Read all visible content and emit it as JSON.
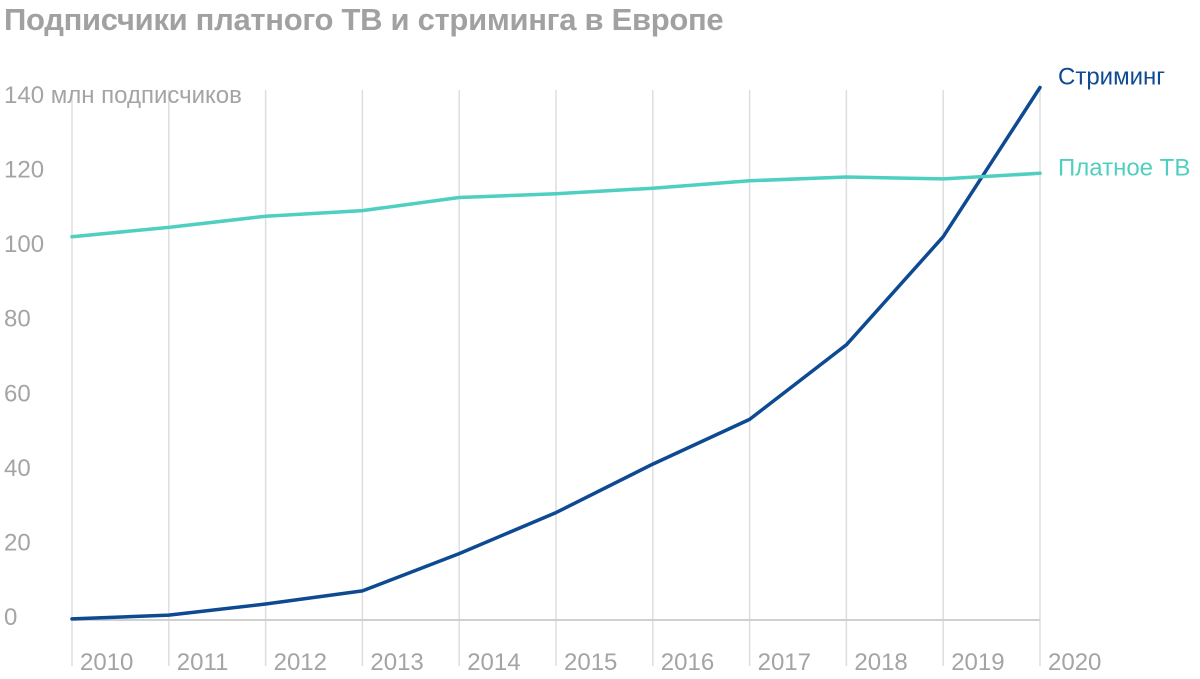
{
  "chart_data": {
    "type": "line",
    "title": "Подписчики платного ТВ и стриминга в Европе",
    "ylabel": "млн подписчиков",
    "xlabel": "",
    "x": [
      "2010",
      "2011",
      "2012",
      "2013",
      "2014",
      "2015",
      "2016",
      "2017",
      "2018",
      "2019",
      "2020"
    ],
    "ylim": [
      0,
      140
    ],
    "yticks": [
      0,
      20,
      40,
      60,
      80,
      100,
      120,
      140
    ],
    "grid": "vertical",
    "legend": "right, labels at line ends",
    "series": [
      {
        "name": "Стриминг",
        "color": "#0d4a92",
        "values": [
          -0.5,
          0.5,
          3.5,
          7,
          17,
          28,
          41,
          53,
          73,
          102,
          142
        ]
      },
      {
        "name": "Платное ТВ",
        "color": "#4fcfc0",
        "values": [
          102,
          104.5,
          107.5,
          109,
          112.5,
          113.5,
          115,
          117,
          118,
          117.5,
          119
        ]
      }
    ]
  }
}
